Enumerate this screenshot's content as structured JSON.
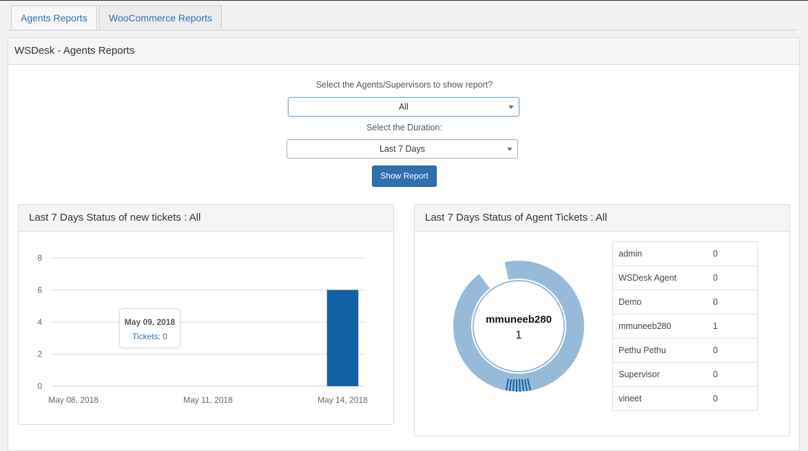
{
  "tabs": [
    {
      "label": "Agents Reports",
      "active": true
    },
    {
      "label": "WooCommerce Reports",
      "active": false
    }
  ],
  "panel_title": "WSDesk - Agents Reports",
  "form": {
    "agents_label": "Select the Agents/Supervisors to show report?",
    "agents_value": "All",
    "duration_label": "Select the Duration:",
    "duration_value": "Last 7 Days",
    "show_button": "Show Report"
  },
  "new_tickets_card": {
    "title": "Last 7 Days Status of new tickets : All"
  },
  "agent_tickets_card": {
    "title": "Last 7 Days Status of Agent Tickets : All",
    "center_name": "mmuneeb280",
    "center_value": "1",
    "agents": [
      {
        "name": "admin",
        "count": "0"
      },
      {
        "name": "WSDesk Agent",
        "count": "0"
      },
      {
        "name": "Demo",
        "count": "0"
      },
      {
        "name": "mmuneeb280",
        "count": "1"
      },
      {
        "name": "Pethu Pethu",
        "count": "0"
      },
      {
        "name": "Supervisor",
        "count": "0"
      },
      {
        "name": "vineet",
        "count": "0"
      }
    ]
  },
  "tooltip": {
    "date": "May 09, 2018",
    "value": "Tickets: 0"
  },
  "colors": {
    "bar": "#1160a6",
    "donut": "#98bad9",
    "link": "#2e70ad",
    "button": "#2e6fad"
  },
  "chart_data": [
    {
      "type": "bar",
      "x": [
        "May 08, 2018",
        "May 09, 2018",
        "May 10, 2018",
        "May 11, 2018",
        "May 12, 2018",
        "May 13, 2018",
        "May 14, 2018"
      ],
      "values": [
        0,
        0,
        0,
        0,
        0,
        0,
        6
      ],
      "xticks": [
        "May 08, 2018",
        "May 11, 2018",
        "May 14, 2018"
      ],
      "yticks": [
        "0",
        "2",
        "4",
        "6",
        "8"
      ],
      "ylim": [
        0,
        8
      ],
      "grid": true
    },
    {
      "type": "pie",
      "variant": "donut",
      "categories": [
        "admin",
        "WSDesk Agent",
        "Demo",
        "mmuneeb280",
        "Pethu Pethu",
        "Supervisor",
        "vineet"
      ],
      "values": [
        0,
        0,
        0,
        1,
        0,
        0,
        0
      ]
    }
  ]
}
